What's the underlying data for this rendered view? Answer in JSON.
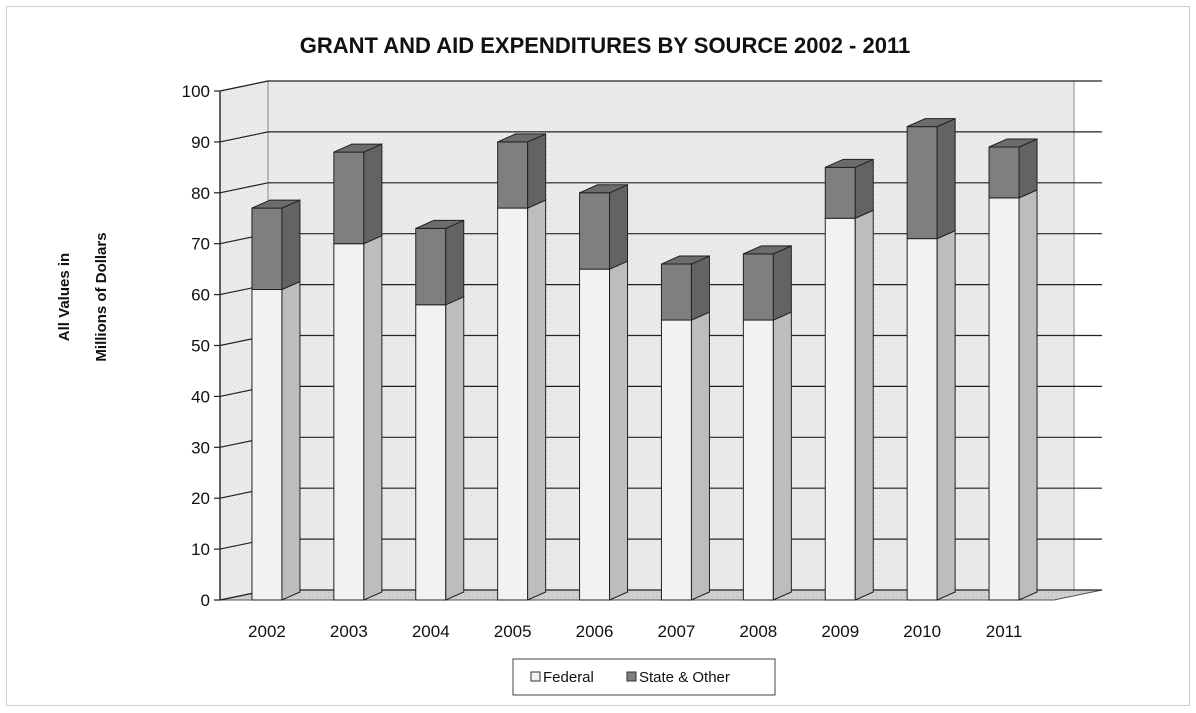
{
  "chart_data": {
    "type": "bar",
    "stacked": true,
    "three_d": true,
    "title": "GRANT AND AID EXPENDITURES  BY SOURCE 2002 - 2011",
    "ylabel_lines": [
      "All Values in",
      "Millions of Dollars"
    ],
    "xlabel": "",
    "ylim": [
      0,
      100
    ],
    "yticks": [
      0,
      10,
      20,
      30,
      40,
      50,
      60,
      70,
      80,
      90,
      100
    ],
    "grid": true,
    "legend_position": "bottom",
    "categories": [
      "2002",
      "2003",
      "2004",
      "2005",
      "2006",
      "2007",
      "2008",
      "2009",
      "2010",
      "2011"
    ],
    "series": [
      {
        "name": "Federal",
        "values": [
          61,
          70,
          58,
          77,
          65,
          55,
          55,
          75,
          71,
          79
        ],
        "color": "#f2f2f2"
      },
      {
        "name": "State & Other",
        "values": [
          16,
          18,
          15,
          13,
          15,
          11,
          13,
          10,
          22,
          10
        ],
        "color": "#7f7f7f"
      }
    ],
    "legend_labels": [
      "Federal",
      "State & Other"
    ]
  }
}
